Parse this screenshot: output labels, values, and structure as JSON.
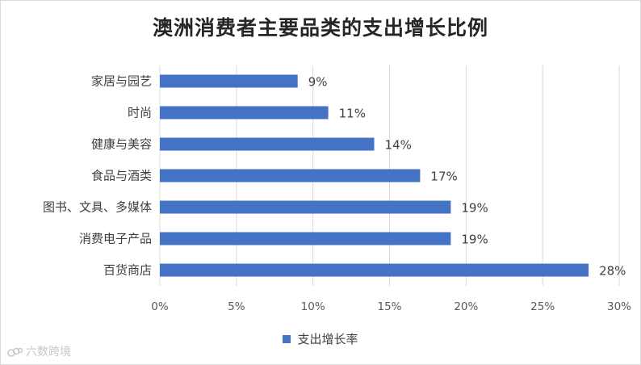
{
  "chart_data": {
    "type": "bar",
    "orientation": "horizontal",
    "title": "澳洲消费者主要品类的支出增长比例",
    "categories": [
      "百货商店",
      "消费电子产品",
      "图书、文具、多媒体",
      "食品与酒类",
      "健康与美容",
      "时尚",
      "家居与园艺"
    ],
    "series": [
      {
        "name": "支出增长率",
        "values": [
          0.28,
          0.19,
          0.19,
          0.17,
          0.14,
          0.11,
          0.09
        ],
        "labels": [
          "28%",
          "19%",
          "19%",
          "17%",
          "14%",
          "11%",
          "9%"
        ],
        "color": "#4472C4"
      }
    ],
    "xlim": [
      0,
      0.3
    ],
    "x_ticks": [
      {
        "value": 0,
        "label": "0%"
      },
      {
        "value": 0.05,
        "label": "5%"
      },
      {
        "value": 0.1,
        "label": "10%"
      },
      {
        "value": 0.15,
        "label": "15%"
      },
      {
        "value": 0.2,
        "label": "20%"
      },
      {
        "value": 0.25,
        "label": "25%"
      },
      {
        "value": 0.3,
        "label": "30%"
      }
    ],
    "grid": "vertical",
    "legend_position": "bottom",
    "colors": {
      "bar": "#4472C4",
      "grid": "#d9d9d9",
      "text": "#404040"
    }
  },
  "watermark": {
    "text": "六数跨境",
    "icon": "logo-icon"
  }
}
